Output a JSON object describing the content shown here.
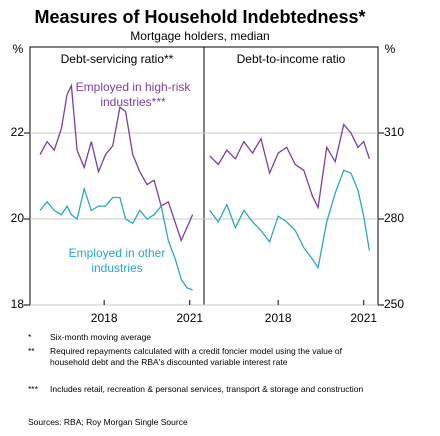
{
  "title": "Measures of Household Indebtedness*",
  "subtitle": "Mortgage holders, median",
  "chart_data": [
    {
      "type": "line",
      "title": "Debt-servicing ratio**",
      "ylabel": "%",
      "xlim": [
        2015.4,
        2021.5
      ],
      "xticks": [
        2018,
        2021
      ],
      "ylim": [
        18,
        24
      ],
      "yticks": [
        18,
        20,
        22
      ],
      "grid": true,
      "x": [
        2015.75,
        2016.0,
        2016.25,
        2016.5,
        2016.7,
        2016.85,
        2017.05,
        2017.3,
        2017.55,
        2017.8,
        2018.05,
        2018.3,
        2018.55,
        2018.75,
        2019.0,
        2019.25,
        2019.5,
        2019.75,
        2020.0,
        2020.25,
        2020.5,
        2020.7,
        2020.9,
        2021.1
      ],
      "series": [
        {
          "name": "Employed in high-risk industries***",
          "color": "#7b3fa3",
          "values": [
            21.5,
            21.8,
            21.6,
            22.1,
            22.9,
            23.1,
            21.6,
            21.2,
            21.8,
            21.1,
            21.5,
            21.7,
            22.6,
            22.5,
            21.5,
            21.1,
            20.8,
            20.9,
            20.3,
            20.4,
            19.9,
            19.5,
            19.8,
            20.1
          ]
        },
        {
          "name": "Employed in other industries",
          "color": "#2aa6c8",
          "values": [
            20.2,
            20.4,
            20.2,
            20.1,
            20.3,
            20.1,
            20.0,
            20.7,
            20.2,
            20.3,
            20.3,
            20.5,
            20.5,
            20.0,
            19.9,
            20.2,
            20.0,
            20.1,
            20.3,
            19.5,
            19.05,
            18.6,
            18.4,
            18.35
          ]
        }
      ]
    },
    {
      "type": "line",
      "title": "Debt-to-income ratio",
      "ylabel": "%",
      "xlim": [
        2015.4,
        2021.5
      ],
      "xticks": [
        2018,
        2021
      ],
      "ylim": [
        250,
        340
      ],
      "yticks": [
        250,
        280,
        310
      ],
      "grid": true,
      "x": [
        2015.6,
        2015.9,
        2016.2,
        2016.5,
        2016.8,
        2017.1,
        2017.4,
        2017.7,
        2018.0,
        2018.3,
        2018.6,
        2018.9,
        2019.2,
        2019.4,
        2019.7,
        2020.0,
        2020.3,
        2020.55,
        2020.8,
        2021.0,
        2021.2
      ],
      "series": [
        {
          "color": "#7b3fa3",
          "values": [
            302,
            299,
            304,
            301,
            307,
            303,
            308,
            296,
            303,
            305,
            299,
            297,
            288,
            284,
            305,
            300,
            313,
            310,
            305,
            307,
            301
          ]
        },
        {
          "color": "#2aa6c8",
          "values": [
            283,
            279,
            285,
            277,
            283,
            279,
            276,
            272,
            281,
            279,
            276,
            270,
            266,
            263,
            279,
            289,
            297,
            296,
            290,
            281,
            269
          ]
        }
      ]
    }
  ],
  "notes": [
    {
      "marker": "*",
      "text": "Six-month moving average"
    },
    {
      "marker": "**",
      "text": "Required repayments calculated with a credit foncier model using the value of household debt and the RBA's discounted variable interest rate"
    },
    {
      "marker": "***",
      "text": "Includes retail, recreation & personal services, transport & storage and construction"
    }
  ],
  "source": "Sources: RBA; Roy Morgan Single Source"
}
